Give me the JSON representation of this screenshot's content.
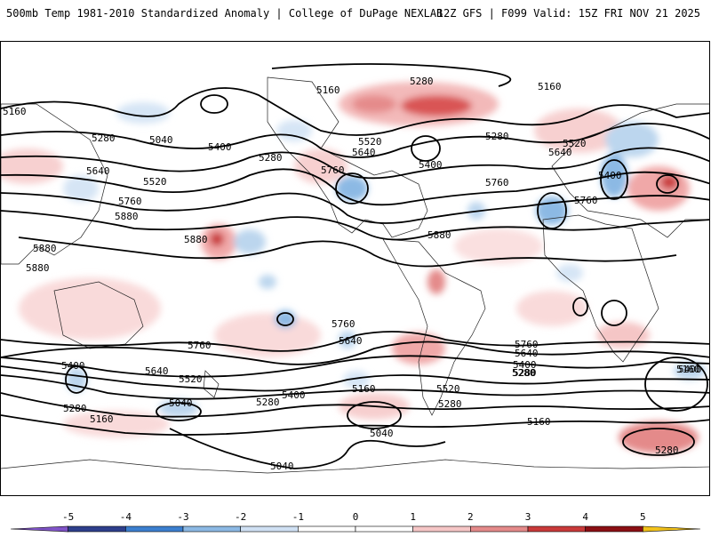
{
  "header": {
    "title": "500mb Temp 1981-2010 Standardized Anomaly | College of DuPage NEXLAB",
    "run_info": "12Z GFS | F099 Valid: 15Z FRI NOV 21 2025"
  },
  "contour_labels": {
    "c5160_nw": "5160",
    "c5160_np": "5160",
    "c5160_pac": "5160",
    "c5280_np": "5280",
    "c5280_wp": "5280",
    "c5280_np2": "5280",
    "c5280_atl": "5280",
    "c5040_np": "5040",
    "c5400_np": "5400",
    "c5400_na": "5400",
    "c5400_eu": "5400",
    "c5520_na": "5520",
    "c5520_wp": "5520",
    "c5520_eu": "5520",
    "c5640_na": "5640",
    "c5640_wp": "5640",
    "c5640_eu": "5640",
    "c5760_na": "5760",
    "c5760_atl": "5760",
    "c5760_wp": "5760",
    "c5760_eu": "5760",
    "c5880_wp": "5880",
    "c5880_pac": "5880",
    "c5880_am": "5880",
    "c5880_ind": "5880",
    "c5880_ind2": "5880",
    "s5760_pac": "5760",
    "s5640_pac": "5640",
    "s5640_am": "5640",
    "s5760_sp": "5760",
    "s5520_sp": "5520",
    "s5400_sp": "5400",
    "s5400_ind": "5400",
    "s5280_sp": "5280",
    "s5280_ind": "5280",
    "s5160_ind": "5160",
    "s5040_ind": "5040",
    "s5400_pac2": "5400",
    "s5280_pac2": "5280",
    "s5160_atl": "5160",
    "s5040_atl": "5040",
    "s5040_ant": "5040",
    "s5760_atl": "5760",
    "s5640_atl": "5640",
    "s5400_atl": "5400",
    "s5280_atl": "5280",
    "s5520_atl": "5520",
    "s5280_ant": "5280",
    "s5160_ant": "5160",
    "s5160_io": "5160",
    "s5280_se": "5280"
  },
  "colorbar": {
    "ticks": [
      "-5",
      "-4",
      "-3",
      "-2",
      "-1",
      "0",
      "1",
      "2",
      "3",
      "4",
      "5"
    ],
    "colors": [
      "#8054c8",
      "#2e3f8c",
      "#3c7fcf",
      "#8cb9e4",
      "#cfe0f3",
      "#ffffff",
      "#ffffff",
      "#f5c6c6",
      "#e48a8a",
      "#c93a3a",
      "#8b0f14",
      "#f2c21a"
    ]
  }
}
